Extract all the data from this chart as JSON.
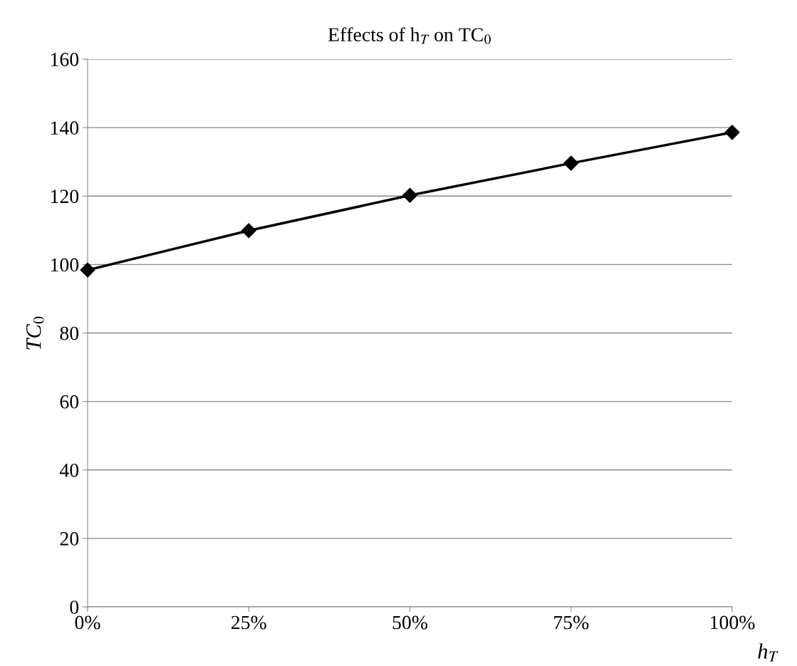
{
  "chart_data": {
    "type": "line",
    "title": "Effects of h$_{T}$ on TC$_{0}$",
    "xlabel": "h$_{T}$",
    "ylabel": "TC$_{0}$",
    "x": [
      0,
      25,
      50,
      75,
      100
    ],
    "series": [
      {
        "color": "#000000",
        "values": [
          98.4,
          109.9,
          120.2,
          129.6,
          138.6
        ]
      }
    ],
    "xlim": [
      0,
      100
    ],
    "xticks": [
      {
        "value": 0,
        "label": "0%"
      },
      {
        "value": 25,
        "label": "25%"
      },
      {
        "value": 50,
        "label": "50%"
      },
      {
        "value": 75,
        "label": "75%"
      },
      {
        "value": 100,
        "label": "100%"
      }
    ],
    "ylim": [
      0,
      160
    ],
    "yticks": [
      0,
      20,
      40,
      60,
      80,
      100,
      120,
      140,
      160
    ],
    "grid": "y",
    "legend": false,
    "marker": "diamond",
    "line_style": "solid"
  }
}
